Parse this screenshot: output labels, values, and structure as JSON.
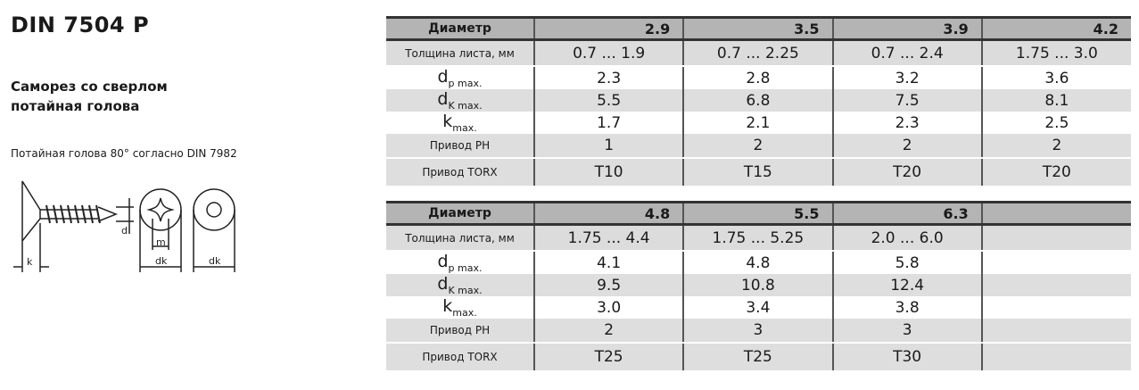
{
  "title": "DIN 7504 P",
  "subtitle_line1": "Саморез со сверлом",
  "subtitle_line2": "потайная голова",
  "note": "Потайная голова 80° согласно DIN 7982",
  "diagram_labels": {
    "k": "k",
    "m": "m",
    "dk": "dk",
    "d": "d"
  },
  "row_labels": {
    "diameter": "Диаметр",
    "thickness": "Толщина листа, мм",
    "dp": "d",
    "dp_sub": "p max.",
    "dk": "d",
    "dk_sub": "K max.",
    "k": "k",
    "k_sub": "max.",
    "ph": "Привод PH",
    "torx": "Привод TORX"
  },
  "table1": {
    "diameter": [
      "2.9",
      "3.5",
      "3.9",
      "4.2"
    ],
    "thickness": [
      "0.7  ...  1.9",
      "0.7  ...  2.25",
      "0.7  ...  2.4",
      "1.75  ...  3.0"
    ],
    "dp": [
      "2.3",
      "2.8",
      "3.2",
      "3.6"
    ],
    "dk": [
      "5.5",
      "6.8",
      "7.5",
      "8.1"
    ],
    "k": [
      "1.7",
      "2.1",
      "2.3",
      "2.5"
    ],
    "ph": [
      "1",
      "2",
      "2",
      "2"
    ],
    "torx": [
      "T10",
      "T15",
      "T20",
      "T20"
    ]
  },
  "table2": {
    "diameter": [
      "4.8",
      "5.5",
      "6.3",
      ""
    ],
    "thickness": [
      "1.75  ...  4.4",
      "1.75  ...  5.25",
      "2.0  ...  6.0",
      ""
    ],
    "dp": [
      "4.1",
      "4.8",
      "5.8",
      ""
    ],
    "dk": [
      "9.5",
      "10.8",
      "12.4",
      ""
    ],
    "k": [
      "3.0",
      "3.4",
      "3.8",
      ""
    ],
    "ph": [
      "2",
      "3",
      "3",
      ""
    ],
    "torx": [
      "T25",
      "T25",
      "T30",
      ""
    ]
  }
}
